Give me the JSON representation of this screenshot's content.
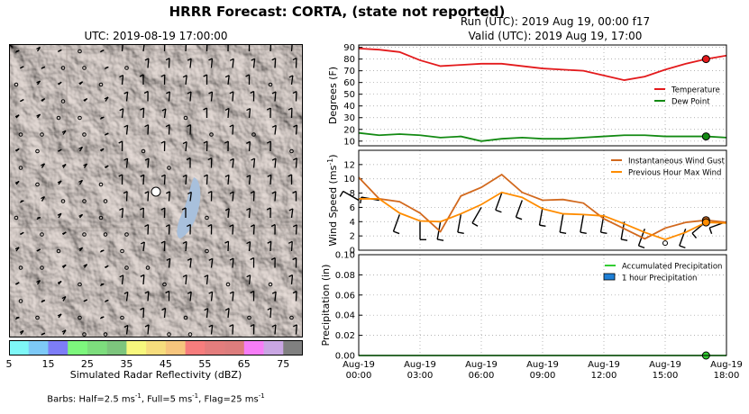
{
  "header": {
    "title": "HRRR Forecast: CORTA, (state not reported)",
    "run_line": "Run (UTC): 2019 Aug 19, 00:00 f17",
    "valid_line": "Valid (UTC): 2019 Aug 19, 17:00"
  },
  "map": {
    "title": "UTC: 2019-08-19 17:00:00",
    "colorbar_label": "Simulated Radar Reflectivity (dBZ)",
    "colorbar_ticks": [
      "5",
      "15",
      "25",
      "35",
      "45",
      "55",
      "65",
      "75"
    ],
    "colorbar_colors": [
      "#7ef7f7",
      "#7dc9f7",
      "#7d7df7",
      "#7df77d",
      "#7ddd7d",
      "#7dc57d",
      "#f7f77d",
      "#f7dd7d",
      "#f7c57d",
      "#f77d7d",
      "#e47d7d",
      "#dd7d7d",
      "#f77df7",
      "#c9a6e3",
      "#808080"
    ],
    "barb_note_prefix": "Barbs: Half=2.5 ms",
    "barb_note_mid1": ", Full=5 ms",
    "barb_note_mid2": ", Flag=25 ms",
    "barb_note_exp": "-1"
  },
  "chart_data": [
    {
      "type": "line",
      "x": [
        "Aug-19 00:00",
        "Aug-19 01:00",
        "Aug-19 02:00",
        "Aug-19 03:00",
        "Aug-19 04:00",
        "Aug-19 05:00",
        "Aug-19 06:00",
        "Aug-19 07:00",
        "Aug-19 08:00",
        "Aug-19 09:00",
        "Aug-19 10:00",
        "Aug-19 11:00",
        "Aug-19 12:00",
        "Aug-19 13:00",
        "Aug-19 14:00",
        "Aug-19 15:00",
        "Aug-19 16:00",
        "Aug-19 17:00",
        "Aug-19 18:00"
      ],
      "series": [
        {
          "name": "Temperature",
          "color": "#e31a1c",
          "values": [
            89,
            88,
            86,
            79,
            74,
            75,
            76,
            76,
            74,
            72,
            71,
            70,
            66,
            62,
            65,
            71,
            76,
            80,
            83
          ]
        },
        {
          "name": "Dew Point",
          "color": "#138a13",
          "values": [
            17,
            15,
            16,
            15,
            13,
            14,
            10,
            12,
            13,
            12,
            12,
            13,
            14,
            15,
            15,
            14,
            14,
            14,
            13
          ]
        }
      ],
      "marker_index": 17,
      "ylabel": "Degrees (F)",
      "ylim": [
        6,
        92
      ],
      "yticks": [
        "10",
        "20",
        "30",
        "40",
        "50",
        "60",
        "70",
        "80",
        "90"
      ],
      "grid": true,
      "legend": "right"
    },
    {
      "type": "line",
      "x": [
        "Aug-19 00:00",
        "Aug-19 01:00",
        "Aug-19 02:00",
        "Aug-19 03:00",
        "Aug-19 04:00",
        "Aug-19 05:00",
        "Aug-19 06:00",
        "Aug-19 07:00",
        "Aug-19 08:00",
        "Aug-19 09:00",
        "Aug-19 10:00",
        "Aug-19 11:00",
        "Aug-19 12:00",
        "Aug-19 13:00",
        "Aug-19 14:00",
        "Aug-19 15:00",
        "Aug-19 16:00",
        "Aug-19 17:00",
        "Aug-19 18:00"
      ],
      "series": [
        {
          "name": "Instantaneous Wind Gust",
          "color": "#d2691e",
          "values": [
            10.2,
            7.2,
            6.8,
            5.2,
            2.6,
            7.6,
            8.8,
            10.6,
            8.1,
            7.0,
            7.1,
            6.6,
            4.4,
            3.0,
            1.6,
            3.1,
            3.9,
            4.2,
            3.9
          ]
        },
        {
          "name": "Previous Hour Max Wind",
          "color": "#ff8c00",
          "values": [
            7.2,
            7.2,
            5.2,
            4.1,
            4.0,
            5.1,
            6.4,
            8.1,
            7.4,
            5.8,
            5.1,
            5.0,
            4.8,
            3.7,
            2.5,
            1.5,
            2.5,
            3.9,
            3.8
          ]
        }
      ],
      "marker_index": 17,
      "ylabel": "Wind Speed (ms",
      "ylabel_exp": "-1",
      "ylabel_close": ")",
      "ylim": [
        0,
        14
      ],
      "yticks": [
        "0",
        "2",
        "4",
        "6",
        "8",
        "10",
        "12"
      ],
      "grid": true,
      "legend": "top-right"
    },
    {
      "type": "line",
      "x": [
        "Aug-19 00:00",
        "Aug-19 01:00",
        "Aug-19 02:00",
        "Aug-19 03:00",
        "Aug-19 04:00",
        "Aug-19 05:00",
        "Aug-19 06:00",
        "Aug-19 07:00",
        "Aug-19 08:00",
        "Aug-19 09:00",
        "Aug-19 10:00",
        "Aug-19 11:00",
        "Aug-19 12:00",
        "Aug-19 13:00",
        "Aug-19 14:00",
        "Aug-19 15:00",
        "Aug-19 16:00",
        "Aug-19 17:00",
        "Aug-19 18:00"
      ],
      "series": [
        {
          "name": "Accumulated Precipitation",
          "color": "#32cd32",
          "values": [
            0,
            0,
            0,
            0,
            0,
            0,
            0,
            0,
            0,
            0,
            0,
            0,
            0,
            0,
            0,
            0,
            0,
            0,
            0
          ]
        },
        {
          "name": "1 hour Precipitation",
          "color": "#1e7fd6",
          "values": [
            0,
            0,
            0,
            0,
            0,
            0,
            0,
            0,
            0,
            0,
            0,
            0,
            0,
            0,
            0,
            0,
            0,
            0,
            0
          ]
        }
      ],
      "marker_index": 17,
      "ylabel": "Precipitation (in)",
      "ylim": [
        0,
        0.1
      ],
      "yticks": [
        "0.00",
        "0.02",
        "0.04",
        "0.06",
        "0.08",
        "0.10"
      ],
      "grid": true,
      "legend": "top-right"
    }
  ],
  "x_axis": {
    "ticks": [
      {
        "date": "Aug-19",
        "time": "00:00"
      },
      {
        "date": "Aug-19",
        "time": "03:00"
      },
      {
        "date": "Aug-19",
        "time": "06:00"
      },
      {
        "date": "Aug-19",
        "time": "09:00"
      },
      {
        "date": "Aug-19",
        "time": "12:00"
      },
      {
        "date": "Aug-19",
        "time": "15:00"
      },
      {
        "date": "Aug-19",
        "time": "18:00"
      }
    ],
    "range_hours": [
      0,
      18
    ]
  },
  "wind_barbs": {
    "speeds": [
      7,
      7,
      5,
      4,
      4,
      5,
      6,
      8,
      7,
      6,
      5,
      5,
      5,
      4,
      3,
      1,
      3,
      4,
      4
    ],
    "directions_deg": [
      300,
      280,
      200,
      180,
      190,
      190,
      210,
      200,
      200,
      190,
      190,
      190,
      190,
      190,
      200,
      0,
      200,
      230,
      250
    ]
  }
}
